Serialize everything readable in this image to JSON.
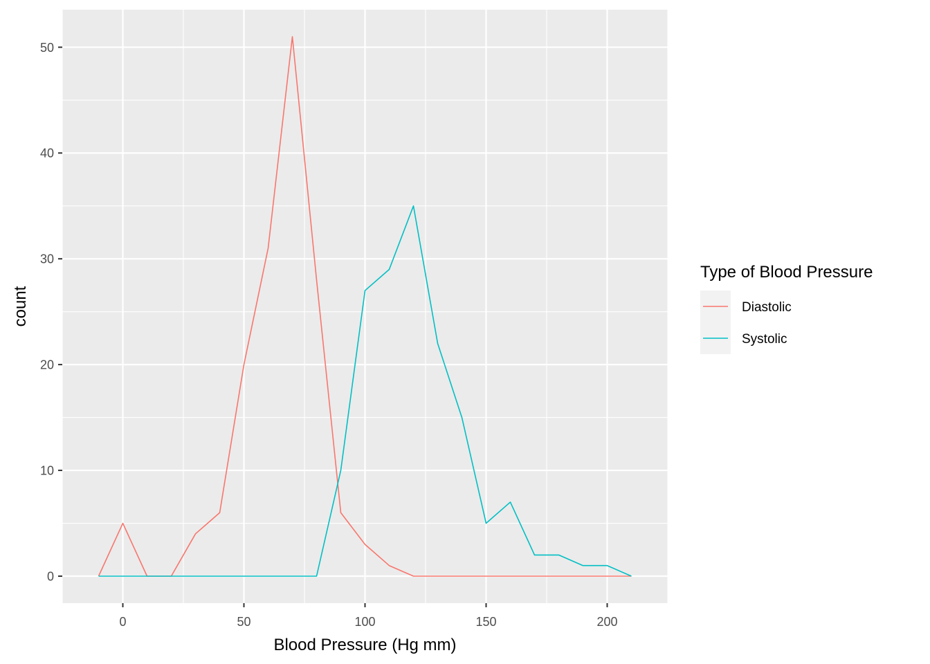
{
  "chart_data": {
    "type": "line",
    "title": "",
    "xlabel": "Blood Pressure (Hg mm)",
    "ylabel": "count",
    "xlim": [
      -25,
      225
    ],
    "ylim": [
      -2.55,
      53.55
    ],
    "x_ticks": [
      0,
      50,
      100,
      150,
      200
    ],
    "y_ticks": [
      0,
      10,
      20,
      30,
      40,
      50
    ],
    "x_tick_labels": [
      "0",
      "50",
      "100",
      "150",
      "200"
    ],
    "y_tick_labels": [
      "0",
      "10",
      "20",
      "30",
      "40",
      "50"
    ],
    "grid": true,
    "legend": {
      "title": "Type of Blood Pressure",
      "placement": "right"
    },
    "x": [
      -10,
      0,
      10,
      20,
      30,
      40,
      50,
      60,
      70,
      80,
      90,
      100,
      110,
      120,
      130,
      140,
      150,
      160,
      170,
      180,
      190,
      200,
      210
    ],
    "series": [
      {
        "name": "Diastolic",
        "color": "#F8766D",
        "values": [
          0,
          5,
          0,
          0,
          4,
          6,
          20,
          31,
          51,
          28,
          6,
          3,
          1,
          0,
          0,
          0,
          0,
          0,
          0,
          0,
          0,
          0,
          0
        ]
      },
      {
        "name": "Systolic",
        "color": "#00BFC4",
        "values": [
          0,
          0,
          0,
          0,
          0,
          0,
          0,
          0,
          0,
          0,
          10,
          27,
          29,
          35,
          22,
          15,
          5,
          7,
          2,
          2,
          1,
          1,
          0
        ]
      }
    ],
    "colors": {
      "panel_background": "#EBEBEB",
      "grid_major": "#FFFFFF",
      "legend_key_background": "#F2F2F2"
    }
  }
}
